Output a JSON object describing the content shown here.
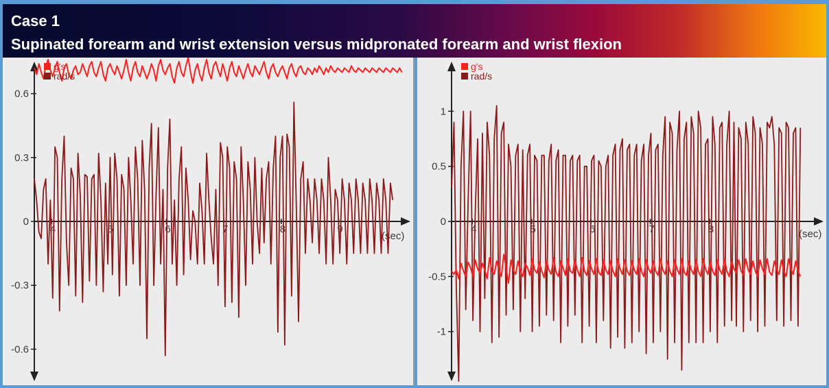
{
  "header": {
    "case_title": "Case 1",
    "subtitle": "Supinated forearm  and wrist extension versus midpronated forearm and wrist flexion"
  },
  "colors": {
    "gs": "#ff2020",
    "rads": "#8b1a1a"
  },
  "chart_data": [
    {
      "type": "line",
      "title": "",
      "xlabel": "(sec)",
      "ylabel": "",
      "xlim": [
        3.7,
        10.2
      ],
      "ylim": [
        -0.75,
        0.75
      ],
      "x_ticks": [
        4,
        5,
        6,
        7,
        8,
        9
      ],
      "y_ticks": [
        0.6,
        0.3,
        0,
        -0.3,
        -0.6
      ],
      "legend": [
        "g's",
        "rad/s"
      ],
      "legend_position": "top-left",
      "series": [
        {
          "name": "g's",
          "x_start": 3.7,
          "x_step": 0.04,
          "values": [
            0.72,
            0.69,
            0.74,
            0.7,
            0.67,
            0.73,
            0.76,
            0.71,
            0.68,
            0.72,
            0.75,
            0.7,
            0.66,
            0.72,
            0.74,
            0.69,
            0.67,
            0.71,
            0.73,
            0.69,
            0.7,
            0.74,
            0.71,
            0.68,
            0.73,
            0.75,
            0.7,
            0.68,
            0.72,
            0.75,
            0.69,
            0.66,
            0.72,
            0.74,
            0.71,
            0.69,
            0.73,
            0.7,
            0.67,
            0.71,
            0.76,
            0.7,
            0.66,
            0.72,
            0.75,
            0.7,
            0.68,
            0.73,
            0.7,
            0.67,
            0.7,
            0.74,
            0.71,
            0.66,
            0.73,
            0.76,
            0.71,
            0.69,
            0.72,
            0.74,
            0.68,
            0.65,
            0.72,
            0.75,
            0.7,
            0.68,
            0.73,
            0.77,
            0.7,
            0.65,
            0.71,
            0.74,
            0.69,
            0.66,
            0.72,
            0.76,
            0.7,
            0.67,
            0.73,
            0.75,
            0.71,
            0.68,
            0.74,
            0.7,
            0.66,
            0.72,
            0.75,
            0.7,
            0.68,
            0.73,
            0.7,
            0.67,
            0.71,
            0.74,
            0.7,
            0.68,
            0.73,
            0.71,
            0.69,
            0.72,
            0.75,
            0.7,
            0.67,
            0.72,
            0.74,
            0.7,
            0.68,
            0.71,
            0.73,
            0.7,
            0.67,
            0.72,
            0.74,
            0.7,
            0.68,
            0.72,
            0.73,
            0.7,
            0.69,
            0.72,
            0.71,
            0.69,
            0.72,
            0.7,
            0.73,
            0.71,
            0.69,
            0.72,
            0.7,
            0.73,
            0.71,
            0.7,
            0.72,
            0.71,
            0.7,
            0.72,
            0.71,
            0.7,
            0.73,
            0.71,
            0.7,
            0.72,
            0.71,
            0.7,
            0.72,
            0.71,
            0.7,
            0.72,
            0.71,
            0.7,
            0.72,
            0.71,
            0.7,
            0.72,
            0.71,
            0.7,
            0.72,
            0.71,
            0.7,
            0.72,
            0.7
          ]
        },
        {
          "name": "rad/s",
          "x_start": 3.7,
          "x_step": 0.04,
          "values": [
            0.2,
            0.1,
            -0.05,
            -0.08,
            0.15,
            0.2,
            -0.2,
            0.1,
            -0.36,
            0.35,
            0.3,
            -0.42,
            0.2,
            0.4,
            -0.1,
            -0.3,
            0.25,
            0.2,
            -0.35,
            0.32,
            0.12,
            -0.38,
            0.22,
            0.21,
            -0.28,
            0.2,
            0.22,
            -0.3,
            0.32,
            0.1,
            -0.33,
            0.18,
            -0.2,
            0.3,
            -0.25,
            0.32,
            0.2,
            -0.35,
            0.22,
            0.15,
            -0.3,
            0.3,
            0.1,
            -0.2,
            0.35,
            0.2,
            -0.3,
            0.38,
            0.15,
            -0.55,
            0.25,
            0.46,
            -0.3,
            0.12,
            0.44,
            -0.2,
            0.15,
            -0.63,
            0.25,
            0.48,
            -0.2,
            0.1,
            -0.3,
            0.2,
            0.35,
            -0.25,
            0.25,
            0.1,
            -0.18,
            0.05,
            0.0,
            -0.2,
            0.18,
            0.05,
            -0.2,
            0.32,
            0.1,
            -0.08,
            -0.2,
            0.15,
            -0.3,
            0.37,
            0.3,
            -0.4,
            0.35,
            0.25,
            -0.38,
            0.28,
            0.2,
            -0.45,
            0.35,
            0.1,
            -0.3,
            0.28,
            0.15,
            -0.2,
            0.3,
            0.0,
            -0.15,
            0.25,
            -0.1,
            0.2,
            0.28,
            -0.2,
            0.25,
            0.4,
            -0.52,
            0.3,
            0.4,
            -0.58,
            0.41,
            0.35,
            -0.35,
            0.56,
            0.1,
            -0.47,
            0.2,
            0.28,
            -0.15,
            0.2,
            0.1,
            -0.1,
            0.2,
            0.1,
            -0.15,
            0.2,
            0.1,
            -0.2,
            0.3,
            0.1,
            -0.2,
            0.15,
            0.1,
            -0.15,
            0.2,
            0.1,
            -0.2,
            0.18,
            0.1,
            -0.15,
            0.2,
            0.1,
            -0.15,
            0.18,
            0.1,
            -0.15,
            0.2,
            0.1,
            -0.15,
            0.18,
            0.1,
            -0.15,
            0.2,
            0.1,
            -0.15,
            0.18,
            0.1
          ]
        }
      ]
    },
    {
      "type": "line",
      "title": "",
      "xlabel": "(sec)",
      "ylabel": "",
      "xlim": [
        3.65,
        9.85
      ],
      "ylim": [
        -1.45,
        1.45
      ],
      "x_ticks": [
        4,
        5,
        6,
        7,
        8
      ],
      "y_ticks": [
        1,
        0.5,
        0,
        -0.5,
        -1
      ],
      "legend": [
        "g's",
        "rad/s"
      ],
      "legend_position": "top-left",
      "series": [
        {
          "name": "g's",
          "x_start": 3.65,
          "x_step": 0.04,
          "values": [
            -0.45,
            -0.48,
            -0.44,
            -0.52,
            -0.38,
            -0.45,
            -0.5,
            -0.37,
            -0.42,
            -0.5,
            -0.35,
            -0.43,
            -0.47,
            -0.38,
            -0.44,
            -0.52,
            -0.33,
            -0.45,
            -0.48,
            -0.36,
            -0.44,
            -0.5,
            -0.3,
            -0.42,
            -0.56,
            -0.35,
            -0.44,
            -0.48,
            -0.36,
            -0.45,
            -0.5,
            -0.38,
            -0.42,
            -0.49,
            -0.34,
            -0.44,
            -0.47,
            -0.37,
            -0.45,
            -0.51,
            -0.36,
            -0.44,
            -0.48,
            -0.33,
            -0.46,
            -0.5,
            -0.36,
            -0.42,
            -0.49,
            -0.34,
            -0.45,
            -0.47,
            -0.35,
            -0.44,
            -0.5,
            -0.33,
            -0.45,
            -0.49,
            -0.36,
            -0.43,
            -0.48,
            -0.34,
            -0.46,
            -0.49,
            -0.35,
            -0.44,
            -0.48,
            -0.36,
            -0.45,
            -0.5,
            -0.34,
            -0.43,
            -0.48,
            -0.35,
            -0.45,
            -0.49,
            -0.36,
            -0.44,
            -0.48,
            -0.34,
            -0.45,
            -0.5,
            -0.35,
            -0.43,
            -0.47,
            -0.36,
            -0.45,
            -0.49,
            -0.34,
            -0.44,
            -0.48,
            -0.36,
            -0.45,
            -0.5,
            -0.35,
            -0.43,
            -0.48,
            -0.34,
            -0.46,
            -0.49,
            -0.36,
            -0.44,
            -0.48,
            -0.35,
            -0.45,
            -0.5,
            -0.34,
            -0.43,
            -0.48,
            -0.36,
            -0.45,
            -0.49,
            -0.35,
            -0.44,
            -0.48,
            -0.34,
            -0.45,
            -0.5,
            -0.36,
            -0.43,
            -0.47,
            -0.35,
            -0.45,
            -0.49,
            -0.34,
            -0.44,
            -0.48,
            -0.36,
            -0.45,
            -0.5,
            -0.35,
            -0.43,
            -0.48,
            -0.34,
            -0.46,
            -0.49,
            -0.36,
            -0.44,
            -0.48,
            -0.35,
            -0.45,
            -0.5,
            -0.34,
            -0.43,
            -0.48,
            -0.36,
            -0.45,
            -0.5
          ]
        },
        {
          "name": "rad/s",
          "x_start": 3.65,
          "x_step": 0.04,
          "values": [
            0.3,
            0.9,
            -0.6,
            -1.45,
            0.5,
            1.0,
            -0.8,
            0.2,
            1.0,
            -0.9,
            0.1,
            0.75,
            -1.0,
            0.8,
            -0.7,
            0.9,
            0.6,
            -1.1,
            0.75,
            1.05,
            -1.05,
            0.8,
            0.9,
            -0.85,
            0.7,
            0.5,
            -0.8,
            0.6,
            0.7,
            -1.0,
            0.65,
            -0.7,
            0.6,
            0.7,
            -1.0,
            0.6,
            0.55,
            -0.95,
            0.6,
            0.6,
            -0.85,
            0.55,
            0.7,
            -0.9,
            0.55,
            0.65,
            -1.1,
            0.6,
            0.6,
            -0.95,
            0.55,
            0.6,
            -0.85,
            0.55,
            0.6,
            -1.1,
            0.5,
            0.5,
            -0.95,
            0.55,
            0.6,
            -1.1,
            0.55,
            0.5,
            -0.9,
            0.5,
            0.6,
            -1.15,
            0.6,
            0.7,
            -1.05,
            0.65,
            0.75,
            -1.15,
            0.65,
            0.7,
            -1.1,
            0.6,
            0.7,
            -1.0,
            0.55,
            0.7,
            -1.2,
            0.6,
            0.8,
            -1.1,
            0.65,
            0.7,
            -1.0,
            0.6,
            0.95,
            -1.25,
            0.9,
            0.8,
            -1.1,
            0.65,
            1.0,
            -1.35,
            0.75,
            0.9,
            -1.1,
            0.95,
            0.8,
            -1.1,
            1.0,
            0.85,
            -1.1,
            0.7,
            0.75,
            -1.0,
            0.95,
            0.7,
            -1.1,
            0.85,
            0.9,
            -0.95,
            0.7,
            1.0,
            -0.9,
            0.9,
            -0.95,
            0.85,
            0.75,
            -1.0,
            0.9,
            0.7,
            -0.9,
            0.95,
            0.8,
            -1.0,
            0.85,
            0.7,
            -0.95,
            0.9,
            0.85,
            0.95,
            0.7,
            -0.9,
            0.85,
            0.8,
            -0.95,
            0.9,
            0.85,
            -0.9,
            0.8,
            0.85,
            -0.95,
            0.85
          ]
        }
      ]
    }
  ]
}
